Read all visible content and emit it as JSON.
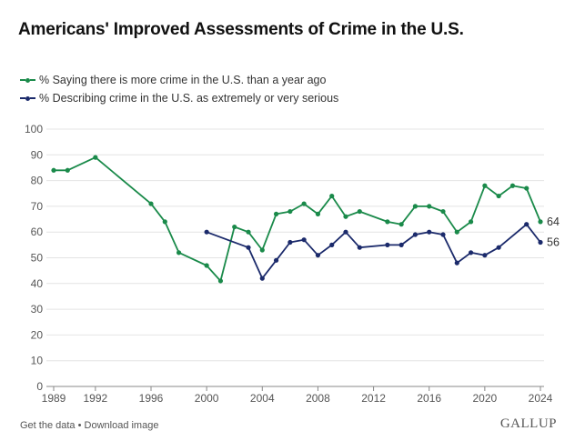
{
  "title": "Americans' Improved Assessments of Crime in the U.S.",
  "footer": {
    "get_data": "Get the data",
    "separator": " • ",
    "download": "Download image",
    "brand": "GALLUP"
  },
  "colors": {
    "green": "#1a8a4a",
    "navy": "#1b2a6b",
    "grid": "#e4e4e4",
    "axis": "#888888"
  },
  "chart_data": {
    "type": "line",
    "title": "Americans' Improved Assessments of Crime in the U.S.",
    "xlabel": "",
    "ylabel": "",
    "xlim": [
      1989,
      2024
    ],
    "ylim": [
      0,
      100
    ],
    "x_ticks": [
      1989,
      1992,
      1996,
      2000,
      2004,
      2008,
      2012,
      2016,
      2020,
      2024
    ],
    "y_ticks": [
      0,
      10,
      20,
      30,
      40,
      50,
      60,
      70,
      80,
      90,
      100
    ],
    "series": [
      {
        "name": "% Saying there is more crime in the U.S. than a year ago",
        "color": "#1a8a4a",
        "end_label": "64",
        "points": [
          [
            1989,
            84
          ],
          [
            1990,
            84
          ],
          [
            1992,
            89
          ],
          [
            1996,
            71
          ],
          [
            1997,
            64
          ],
          [
            1998,
            52
          ],
          [
            2000,
            47
          ],
          [
            2001,
            41
          ],
          [
            2002,
            62
          ],
          [
            2003,
            60
          ],
          [
            2004,
            53
          ],
          [
            2005,
            67
          ],
          [
            2006,
            68
          ],
          [
            2007,
            71
          ],
          [
            2008,
            67
          ],
          [
            2009,
            74
          ],
          [
            2010,
            66
          ],
          [
            2011,
            68
          ],
          [
            2013,
            64
          ],
          [
            2014,
            63
          ],
          [
            2015,
            70
          ],
          [
            2016,
            70
          ],
          [
            2017,
            68
          ],
          [
            2018,
            60
          ],
          [
            2019,
            64
          ],
          [
            2020,
            78
          ],
          [
            2021,
            74
          ],
          [
            2022,
            78
          ],
          [
            2023,
            77
          ],
          [
            2024,
            64
          ]
        ]
      },
      {
        "name": "% Describing crime in the U.S. as extremely or very serious",
        "color": "#1b2a6b",
        "end_label": "56",
        "points": [
          [
            2000,
            60
          ],
          [
            2003,
            54
          ],
          [
            2004,
            42
          ],
          [
            2005,
            49
          ],
          [
            2006,
            56
          ],
          [
            2007,
            57
          ],
          [
            2008,
            51
          ],
          [
            2009,
            55
          ],
          [
            2010,
            60
          ],
          [
            2011,
            54
          ],
          [
            2013,
            55
          ],
          [
            2014,
            55
          ],
          [
            2015,
            59
          ],
          [
            2016,
            60
          ],
          [
            2017,
            59
          ],
          [
            2018,
            48
          ],
          [
            2019,
            52
          ],
          [
            2020,
            51
          ],
          [
            2021,
            54
          ],
          [
            2023,
            63
          ],
          [
            2024,
            56
          ]
        ]
      }
    ]
  }
}
